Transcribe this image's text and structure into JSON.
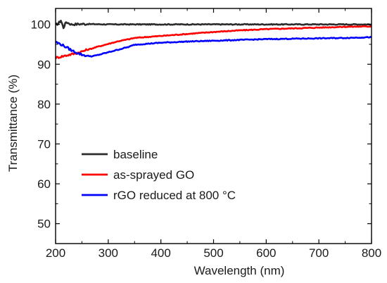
{
  "chart_data": {
    "type": "line",
    "title": "",
    "xlabel": "Wavelength (nm)",
    "ylabel": "Transmittance (%)",
    "xlim": [
      200,
      800
    ],
    "ylim": [
      45,
      104
    ],
    "xticks": [
      200,
      300,
      400,
      500,
      600,
      700,
      800
    ],
    "yticks": [
      50,
      60,
      70,
      80,
      90,
      100
    ],
    "grid": false,
    "legend_position": "lower-left",
    "series": [
      {
        "name": "baseline",
        "color": "#2b2b2b",
        "x": [
          200,
          205,
          210,
          215,
          220,
          230,
          250,
          300,
          400,
          500,
          600,
          700,
          800
        ],
        "y": [
          99.9,
          100.2,
          101.0,
          99.2,
          100.6,
          100.0,
          100.1,
          100.0,
          100.0,
          100.0,
          100.0,
          100.0,
          100.0
        ]
      },
      {
        "name": "as-sprayed GO",
        "color": "#ff0000",
        "x": [
          200,
          220,
          240,
          260,
          280,
          300,
          320,
          340,
          350,
          400,
          450,
          500,
          550,
          600,
          650,
          700,
          750,
          800
        ],
        "y": [
          91.6,
          92.2,
          92.8,
          93.6,
          94.4,
          95.1,
          95.8,
          96.3,
          96.6,
          97.1,
          97.6,
          98.1,
          98.5,
          98.8,
          99.0,
          99.2,
          99.4,
          99.5
        ]
      },
      {
        "name": "rGO reduced at 800 °C",
        "color": "#0000ff",
        "x": [
          200,
          210,
          220,
          230,
          240,
          250,
          260,
          270,
          280,
          300,
          320,
          340,
          350,
          400,
          450,
          500,
          550,
          600,
          650,
          700,
          750,
          800
        ],
        "y": [
          95.6,
          95.0,
          94.3,
          93.5,
          92.9,
          92.4,
          92.1,
          92.0,
          92.3,
          93.0,
          93.7,
          94.4,
          94.9,
          95.4,
          95.7,
          95.9,
          96.1,
          96.3,
          96.4,
          96.5,
          96.6,
          96.8
        ]
      }
    ]
  }
}
